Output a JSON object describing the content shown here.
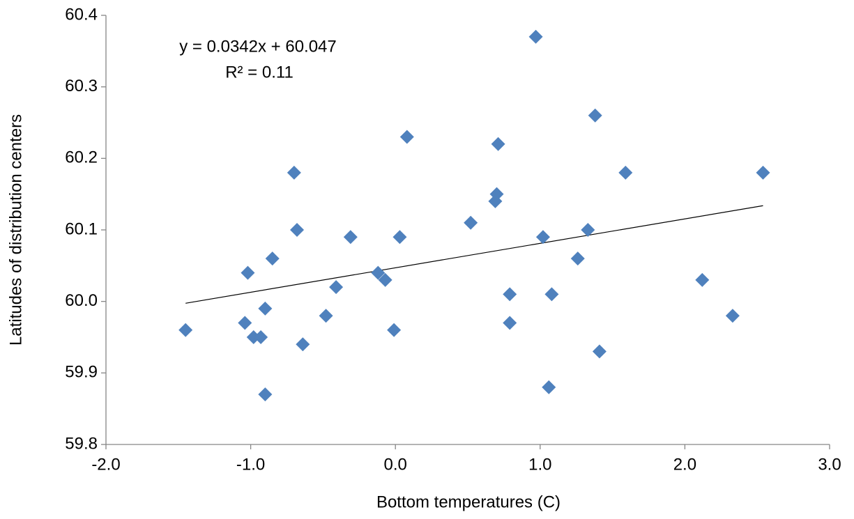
{
  "chart_data": {
    "type": "scatter",
    "x_label": "Bottom temperatures (C)",
    "y_label": "Latitudes of distribution centers",
    "x": [
      -1.45,
      -1.02,
      -1.04,
      -0.98,
      -0.93,
      -0.9,
      -0.9,
      -0.85,
      -0.7,
      -0.68,
      -0.64,
      -0.48,
      -0.41,
      -0.31,
      -0.12,
      -0.07,
      -0.01,
      0.03,
      0.08,
      0.52,
      0.69,
      0.7,
      0.71,
      0.79,
      0.79,
      0.97,
      1.02,
      1.06,
      1.08,
      1.26,
      1.33,
      1.38,
      1.41,
      1.59,
      2.12,
      2.33,
      2.54
    ],
    "series": [
      {
        "color": "#4f81bd",
        "values": [
          59.96,
          60.04,
          59.97,
          59.95,
          59.95,
          59.99,
          59.87,
          60.06,
          60.18,
          60.1,
          59.94,
          59.98,
          60.02,
          60.09,
          60.04,
          60.03,
          59.96,
          60.09,
          60.23,
          60.11,
          60.14,
          60.15,
          60.22,
          60.01,
          59.97,
          60.37,
          60.09,
          59.88,
          60.01,
          60.06,
          60.1,
          60.26,
          59.93,
          60.18,
          60.03,
          59.98,
          60.18
        ]
      }
    ],
    "trendline": {
      "equation": "y = 0.0342x + 60.047",
      "r_squared": "R² = 0.11",
      "slope": 0.0342,
      "intercept": 60.047,
      "color": "#000000"
    },
    "xlim": [
      -2,
      3
    ],
    "xticks": [
      {
        "value": -2,
        "label": "-2.0"
      },
      {
        "value": -1,
        "label": "-1.0"
      },
      {
        "value": 0,
        "label": "0.0"
      },
      {
        "value": 1,
        "label": "1.0"
      },
      {
        "value": 2,
        "label": "2.0"
      },
      {
        "value": 3,
        "label": "3.0"
      }
    ],
    "ylim": [
      59.8,
      60.4
    ],
    "yticks": [
      59.8,
      59.9,
      {
        "value": 60,
        "label": "60.0"
      },
      60.1,
      60.2,
      60.3,
      60.4
    ],
    "grid": false
  }
}
